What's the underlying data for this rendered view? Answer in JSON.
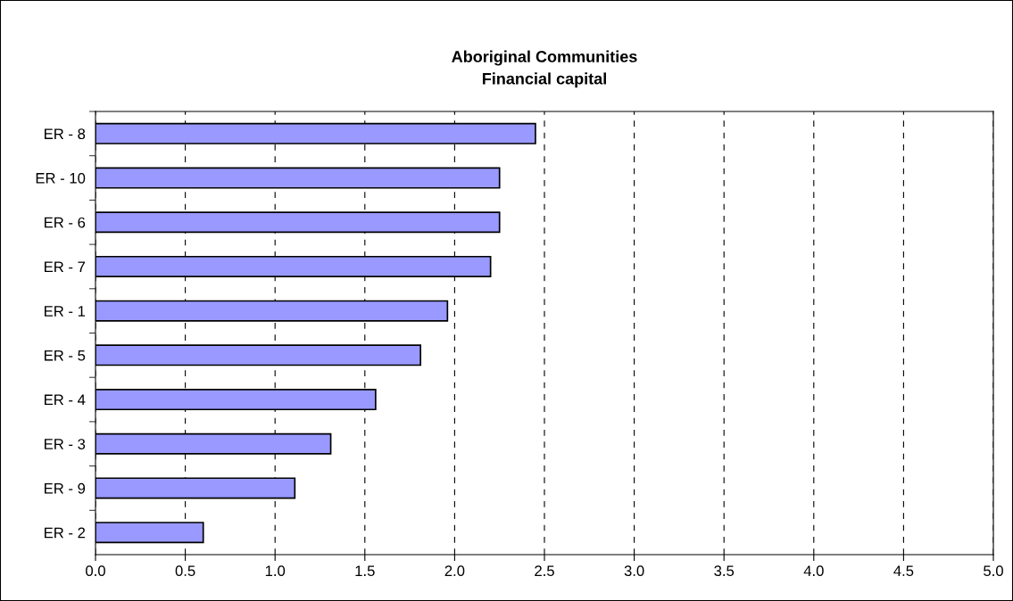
{
  "chart_data": {
    "type": "bar",
    "orientation": "horizontal",
    "title": "Aboriginal Communities\nFinancial capital",
    "categories": [
      "ER - 8",
      "ER - 10",
      "ER - 6",
      "ER - 7",
      "ER - 1",
      "ER - 5",
      "ER - 4",
      "ER - 3",
      "ER - 9",
      "ER - 2"
    ],
    "values": [
      2.45,
      2.25,
      2.25,
      2.2,
      1.96,
      1.81,
      1.56,
      1.31,
      1.11,
      0.6
    ],
    "color": "#9999ff",
    "xlim": [
      0,
      5
    ],
    "xticks": [
      {
        "value": 0,
        "label": "0.0"
      },
      {
        "value": 0.5,
        "label": "0.5"
      },
      {
        "value": 1,
        "label": "1.0"
      },
      {
        "value": 1.5,
        "label": "1.5"
      },
      {
        "value": 2,
        "label": "2.0"
      },
      {
        "value": 2.5,
        "label": "2.5"
      },
      {
        "value": 3,
        "label": "3.0"
      },
      {
        "value": 3.5,
        "label": "3.5"
      },
      {
        "value": 4,
        "label": "4.0"
      },
      {
        "value": 4.5,
        "label": "4.5"
      },
      {
        "value": 5,
        "label": "5.0"
      }
    ],
    "grid": "x",
    "line_style": "dashed"
  }
}
